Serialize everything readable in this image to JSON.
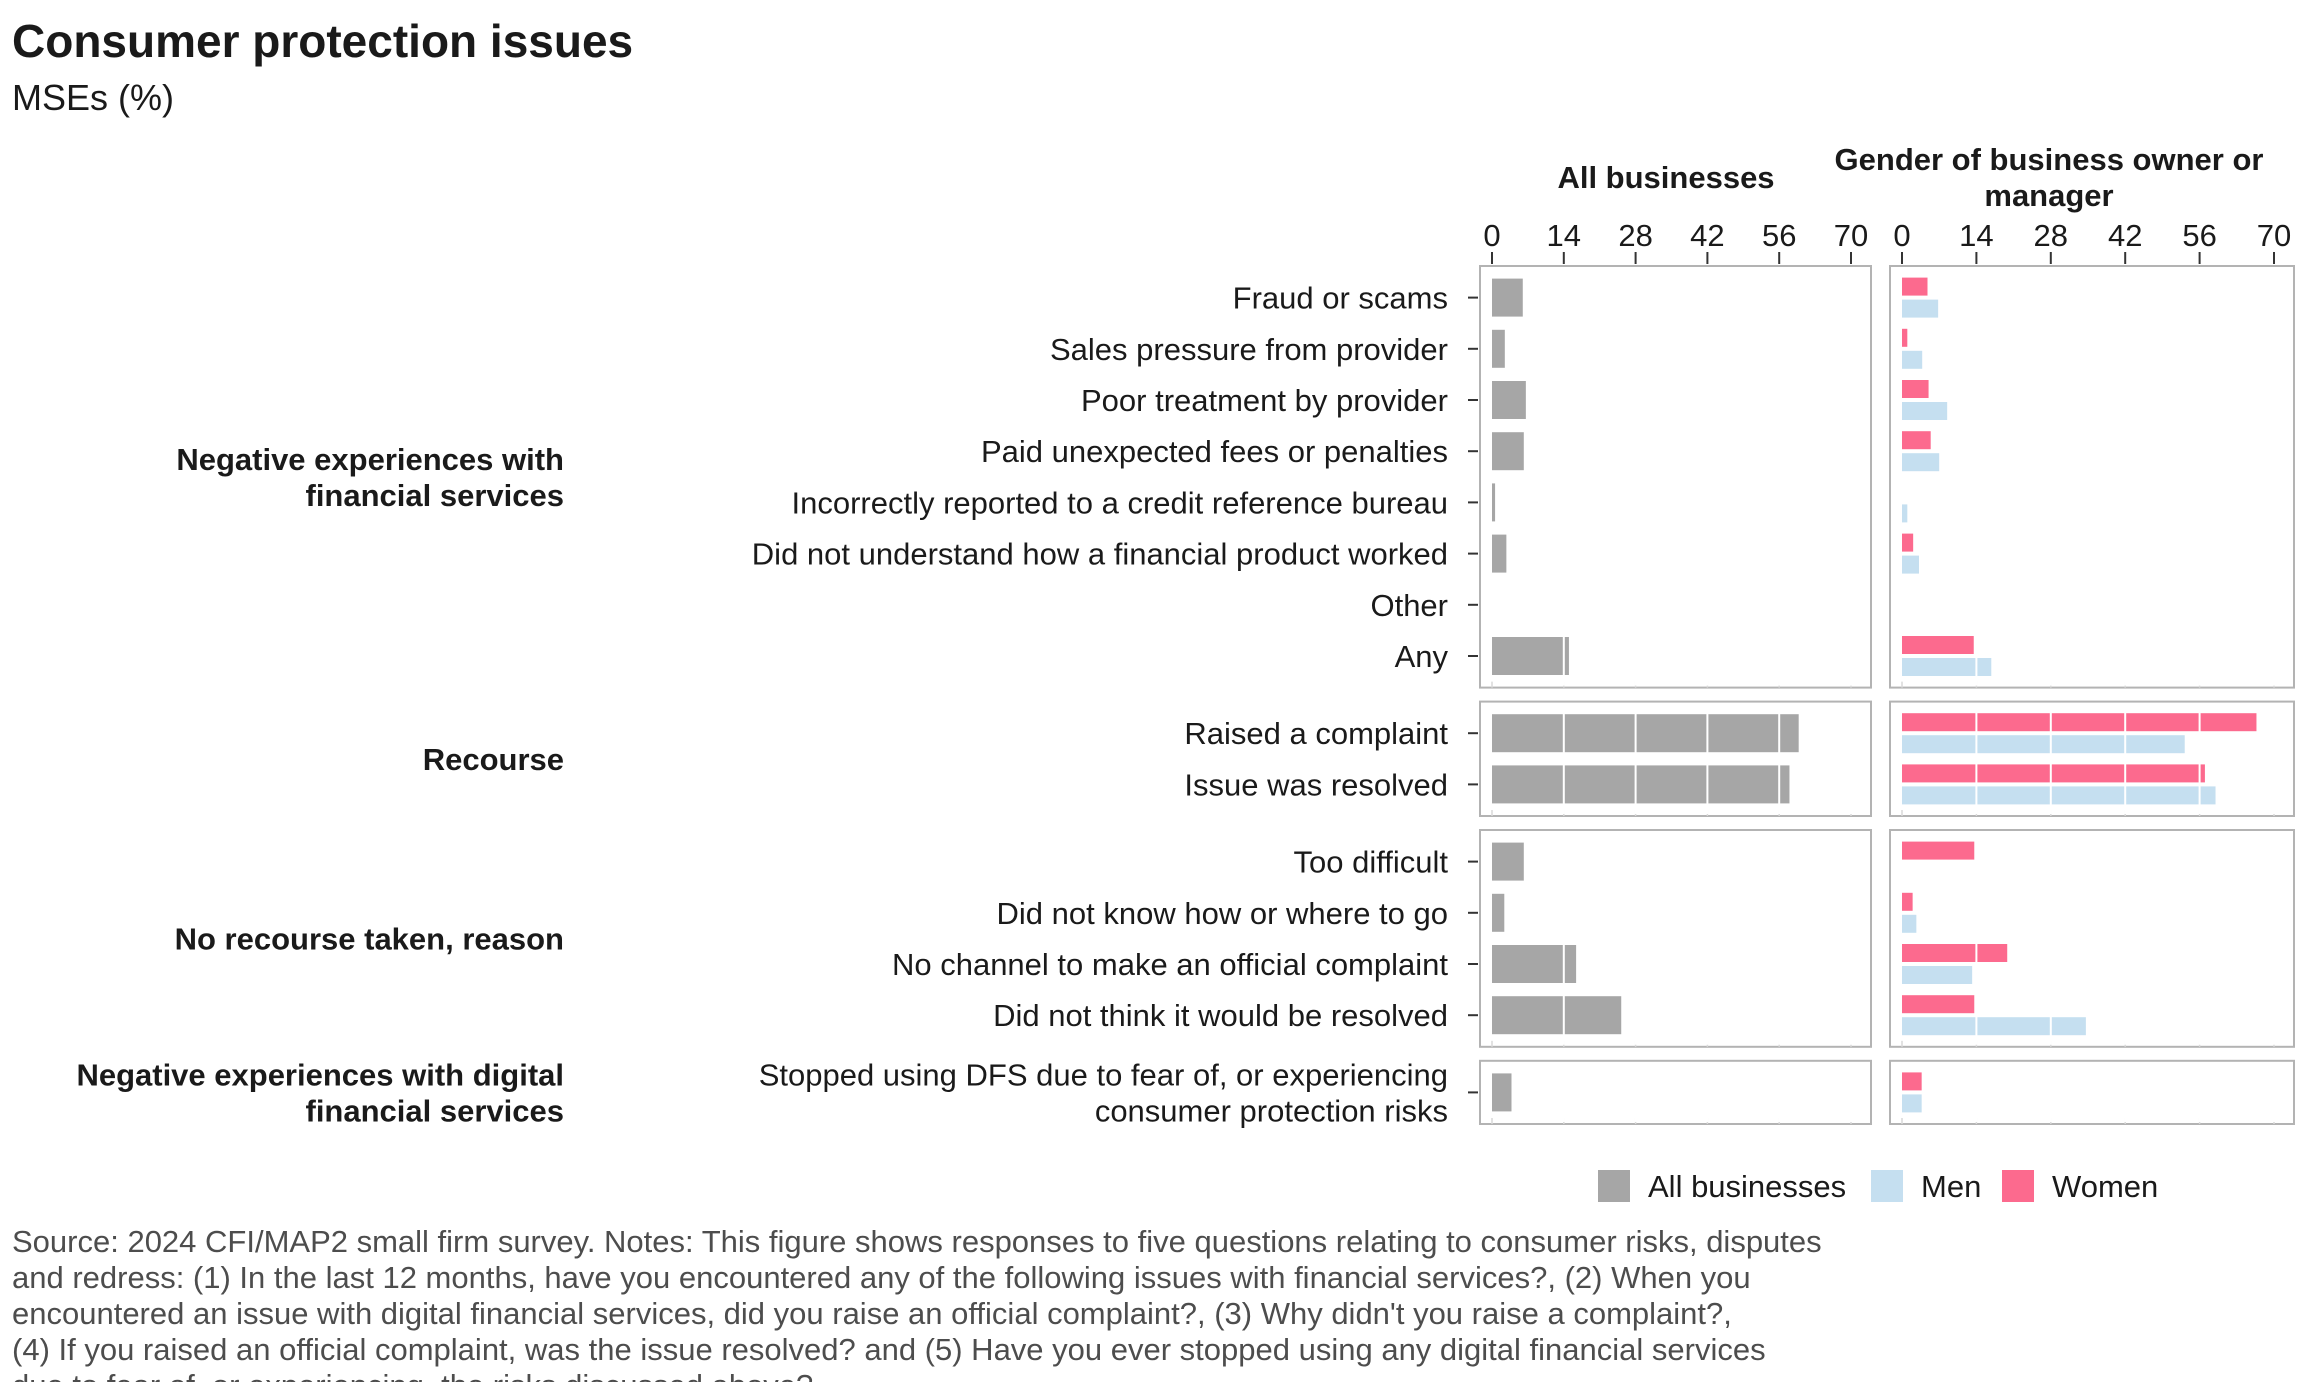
{
  "title": "Consumer protection issues",
  "subtitle": "MSEs (%)",
  "panel_titles": [
    "All businesses",
    "Gender of business owner or manager"
  ],
  "colors": {
    "all": "#a6a6a6",
    "men": "#c5dff0",
    "women": "#fc6a8e"
  },
  "legend": [
    "All businesses",
    "Men",
    "Women"
  ],
  "source": "Source: 2024 CFI/MAP2 small firm survey. Notes: This figure shows responses to five questions relating to consumer risks, disputes and redress: (1) In the last 12 months, have you encountered any of the following issues with financial services?, (2) When you encountered an issue with digital financial services, did you raise an official complaint?, (3) Why didn't you raise a complaint?, (4) If you raised an official complaint, was the issue resolved? and (5) Have you ever stopped using any digital financial services due to fear of, or experiencing, the risks discussed above?",
  "chart_data": {
    "type": "bar",
    "orientation": "horizontal",
    "xlim": [
      0,
      70
    ],
    "x_ticks": [
      0,
      14,
      28,
      42,
      56,
      70
    ],
    "grid": true,
    "legend_position": "bottom-right",
    "groups": [
      {
        "name": "Negative experiences with financial services",
        "rows": [
          {
            "label": "Fraud or scams",
            "all": 6,
            "men": 6.8,
            "women": 4.8
          },
          {
            "label": "Sales pressure from provider",
            "all": 2.5,
            "men": 3.8,
            "women": 1
          },
          {
            "label": "Poor treatment by provider",
            "all": 6.6,
            "men": 8.5,
            "women": 5
          },
          {
            "label": "Paid unexpected fees or penalties",
            "all": 6.2,
            "men": 7,
            "women": 5.4
          },
          {
            "label": "Incorrectly reported to a credit reference bureau",
            "all": 0.6,
            "men": 1,
            "women": 0
          },
          {
            "label": "Did not understand how a financial product worked",
            "all": 2.8,
            "men": 3.2,
            "women": 2.1
          },
          {
            "label": "Other",
            "all": 0,
            "men": 0,
            "women": 0
          },
          {
            "label": "Any",
            "all": 15,
            "men": 16.8,
            "women": 13.5
          }
        ]
      },
      {
        "name": "Recourse",
        "rows": [
          {
            "label": "Raised a complaint",
            "all": 59.8,
            "men": 53.2,
            "women": 66.7
          },
          {
            "label": "Issue was resolved",
            "all": 58,
            "men": 59,
            "women": 57
          }
        ]
      },
      {
        "name": "No recourse taken, reason",
        "rows": [
          {
            "label": "Too difficult",
            "all": 6.2,
            "men": 0,
            "women": 13.6
          },
          {
            "label": "Did not know how or where to go",
            "all": 2.4,
            "men": 2.7,
            "women": 2
          },
          {
            "label": "No channel to make an official complaint",
            "all": 16.4,
            "men": 13.2,
            "women": 19.8
          },
          {
            "label": "Did not think it would be resolved",
            "all": 25.2,
            "men": 34.6,
            "women": 13.6
          }
        ]
      },
      {
        "name": "Negative experiences with digital financial services",
        "rows": [
          {
            "label": "Stopped using DFS due to fear of, or experiencing consumer protection risks",
            "all": 3.8,
            "men": 3.7,
            "women": 3.7
          }
        ]
      }
    ]
  }
}
